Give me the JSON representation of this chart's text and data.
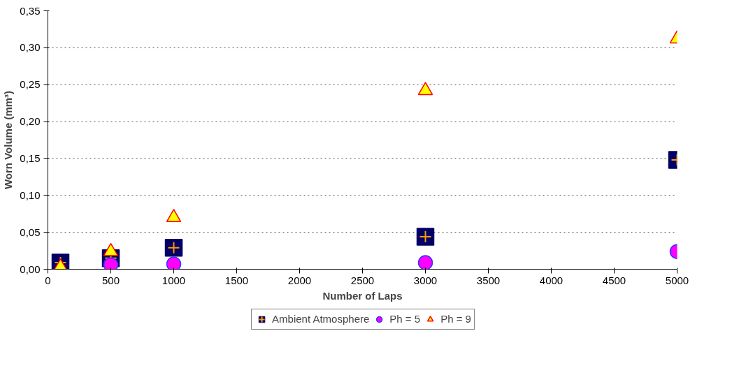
{
  "chart_data": {
    "type": "scatter",
    "xlabel": "Number of Laps",
    "ylabel": "Worn Volume (mm³)",
    "xlim": [
      0,
      5000
    ],
    "xticks": [
      0,
      500,
      1000,
      1500,
      2000,
      2500,
      3000,
      3500,
      4000,
      4500,
      5000
    ],
    "ylim": [
      0,
      0.35
    ],
    "yticks": [
      {
        "value": 0,
        "label": "0,00"
      },
      {
        "value": 0.05,
        "label": "0,05"
      },
      {
        "value": 0.1,
        "label": "0,10"
      },
      {
        "value": 0.15,
        "label": "0,15"
      },
      {
        "value": 0.2,
        "label": "0,20"
      },
      {
        "value": 0.25,
        "label": "0,25"
      },
      {
        "value": 0.3,
        "label": "0,30"
      },
      {
        "value": 0.35,
        "label": "0,35"
      }
    ],
    "grid": "y",
    "legend": "bottom",
    "x": [
      100,
      500,
      1000,
      3000,
      5000
    ],
    "series": [
      {
        "name": "Ambient Atmosphere",
        "color": "#000066",
        "marker": "square",
        "values": [
          0.009,
          0.015,
          0.029,
          0.044,
          0.148
        ]
      },
      {
        "name": "Ph = 5",
        "color": "#ff00ff",
        "marker": "circle",
        "values": [
          null,
          0.006,
          0.007,
          0.009,
          0.024
        ]
      },
      {
        "name": "Ph = 9",
        "color": "#ffff00",
        "marker": "triangle",
        "values": [
          0.003,
          0.024,
          0.07,
          0.242,
          0.312
        ]
      }
    ]
  }
}
